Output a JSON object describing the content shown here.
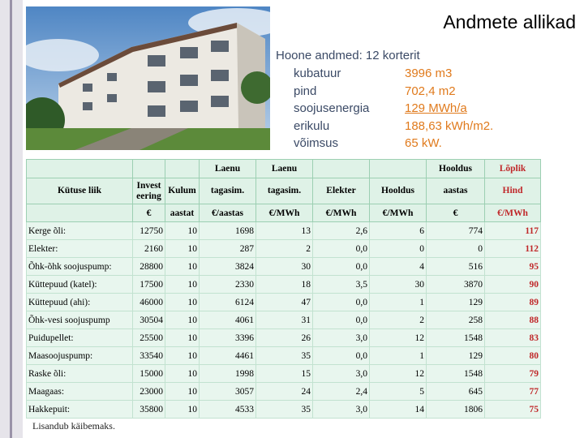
{
  "header": {
    "title": "Andmete allikad"
  },
  "building": {
    "heading": "Hoone andmed:",
    "heading_value": "12 korterit",
    "items": [
      {
        "label": "kubatuur",
        "value": "3996 m3"
      },
      {
        "label": "pind",
        "value": "702,4 m2"
      },
      {
        "label": "soojusenergia",
        "value": "129 MWh/a"
      },
      {
        "label": "erikulu",
        "value": "188,63 kWh/m2."
      },
      {
        "label": "võimsus",
        "value": "65 kW."
      }
    ]
  },
  "table": {
    "header_rows": [
      [
        "",
        "",
        "",
        "Laenu",
        "Laenu",
        "",
        "",
        "Hooldus",
        "Lõplik"
      ],
      [
        "Kütuse liik",
        "Investeering",
        "Kulum",
        "tagasim.",
        "tagasim.",
        "Elekter",
        "Hooldus",
        "aastas",
        "Hind"
      ],
      [
        "",
        "€",
        "aastat",
        "€/aastas",
        "€/MWh",
        "€/MWh",
        "€/MWh",
        "€",
        "€/MWh"
      ]
    ],
    "rows": [
      [
        "Kerge õli:",
        "12750",
        "10",
        "1698",
        "13",
        "2,6",
        "6",
        "774",
        "117"
      ],
      [
        "Elekter:",
        "2160",
        "10",
        "287",
        "2",
        "0,0",
        "0",
        "0",
        "112"
      ],
      [
        "Õhk-õhk soojuspump:",
        "28800",
        "10",
        "3824",
        "30",
        "0,0",
        "4",
        "516",
        "95"
      ],
      [
        "Küttepuud (katel):",
        "17500",
        "10",
        "2330",
        "18",
        "3,5",
        "30",
        "3870",
        "90"
      ],
      [
        "Küttepuud (ahi):",
        "46000",
        "10",
        "6124",
        "47",
        "0,0",
        "1",
        "129",
        "89"
      ],
      [
        "Õhk-vesi soojuspump",
        "30504",
        "10",
        "4061",
        "31",
        "0,0",
        "2",
        "258",
        "88"
      ],
      [
        "Puidupellet:",
        "25500",
        "10",
        "3396",
        "26",
        "3,0",
        "12",
        "1548",
        "83"
      ],
      [
        "Maasoojuspump:",
        "33540",
        "10",
        "4461",
        "35",
        "0,0",
        "1",
        "129",
        "80"
      ],
      [
        "Raske õli:",
        "15000",
        "10",
        "1998",
        "15",
        "3,0",
        "12",
        "1548",
        "79"
      ],
      [
        "Maagaas:",
        "23000",
        "10",
        "3057",
        "24",
        "2,4",
        "5",
        "645",
        "77"
      ],
      [
        "Hakkepuit:",
        "35800",
        "10",
        "4533",
        "35",
        "3,0",
        "14",
        "1806",
        "75"
      ]
    ],
    "footnote": "Lisandub käibemaks."
  }
}
